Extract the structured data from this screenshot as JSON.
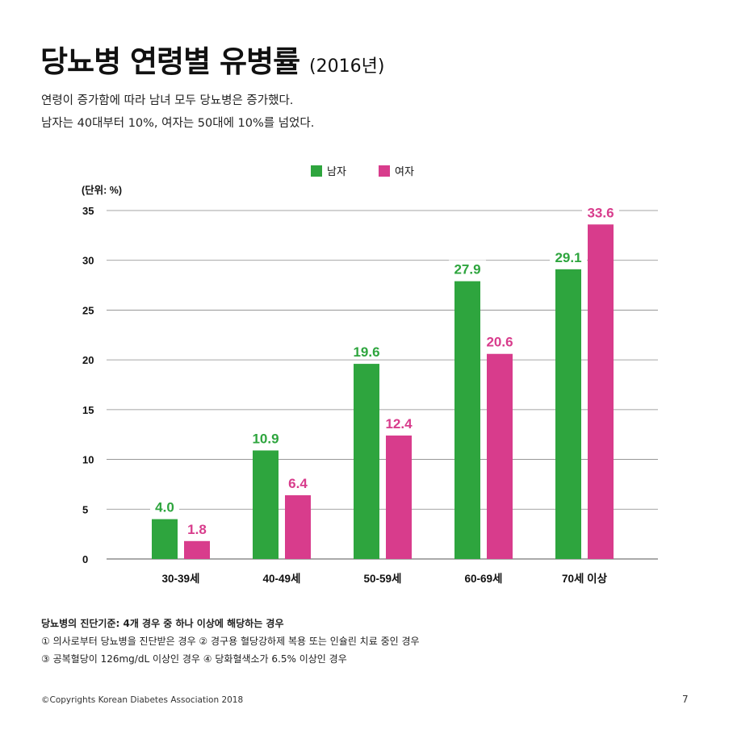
{
  "title": "당뇨병 연령별 유병률",
  "title_year": "(2016년)",
  "subtitle_lines": [
    "연령이 증가함에 따라 남녀 모두 당뇨병은 증가했다.",
    "남자는 40대부터 10%, 여자는 50대에 10%를 넘었다."
  ],
  "unit_label": "(단위: %)",
  "chart_data": {
    "type": "bar",
    "categories": [
      "30-39세",
      "40-49세",
      "50-59세",
      "60-69세",
      "70세 이상"
    ],
    "series": [
      {
        "name": "남자",
        "color": "#2EA53E",
        "values": [
          4.0,
          10.9,
          19.6,
          27.9,
          29.1
        ],
        "labels": [
          "4.0",
          "10.9",
          "19.6",
          "27.9",
          "29.1"
        ]
      },
      {
        "name": "여자",
        "color": "#D83C8C",
        "values": [
          1.8,
          6.4,
          12.4,
          20.6,
          33.6
        ],
        "labels": [
          "1.8",
          "6.4",
          "12.4",
          "20.6",
          "33.6"
        ]
      }
    ],
    "ylim": [
      0,
      35
    ],
    "yticks": [
      "0",
      "5",
      "10",
      "15",
      "20",
      "25",
      "30",
      "35"
    ],
    "grid": true,
    "legend_position": "top"
  },
  "footnotes": [
    "당뇨병의 진단기준: 4개 경우 중 하나 이상에 해당하는 경우",
    "① 의사로부터 당뇨병을 진단받은 경우 ② 경구용 혈당강하제 복용 또는 인슐린 치료 중인 경우",
    "③ 공복혈당이 126mg/dL 이상인 경우 ④ 당화혈색소가 6.5% 이상인 경우"
  ],
  "copyright": "©Copyrights Korean Diabetes Association 2018",
  "page_number": "7"
}
